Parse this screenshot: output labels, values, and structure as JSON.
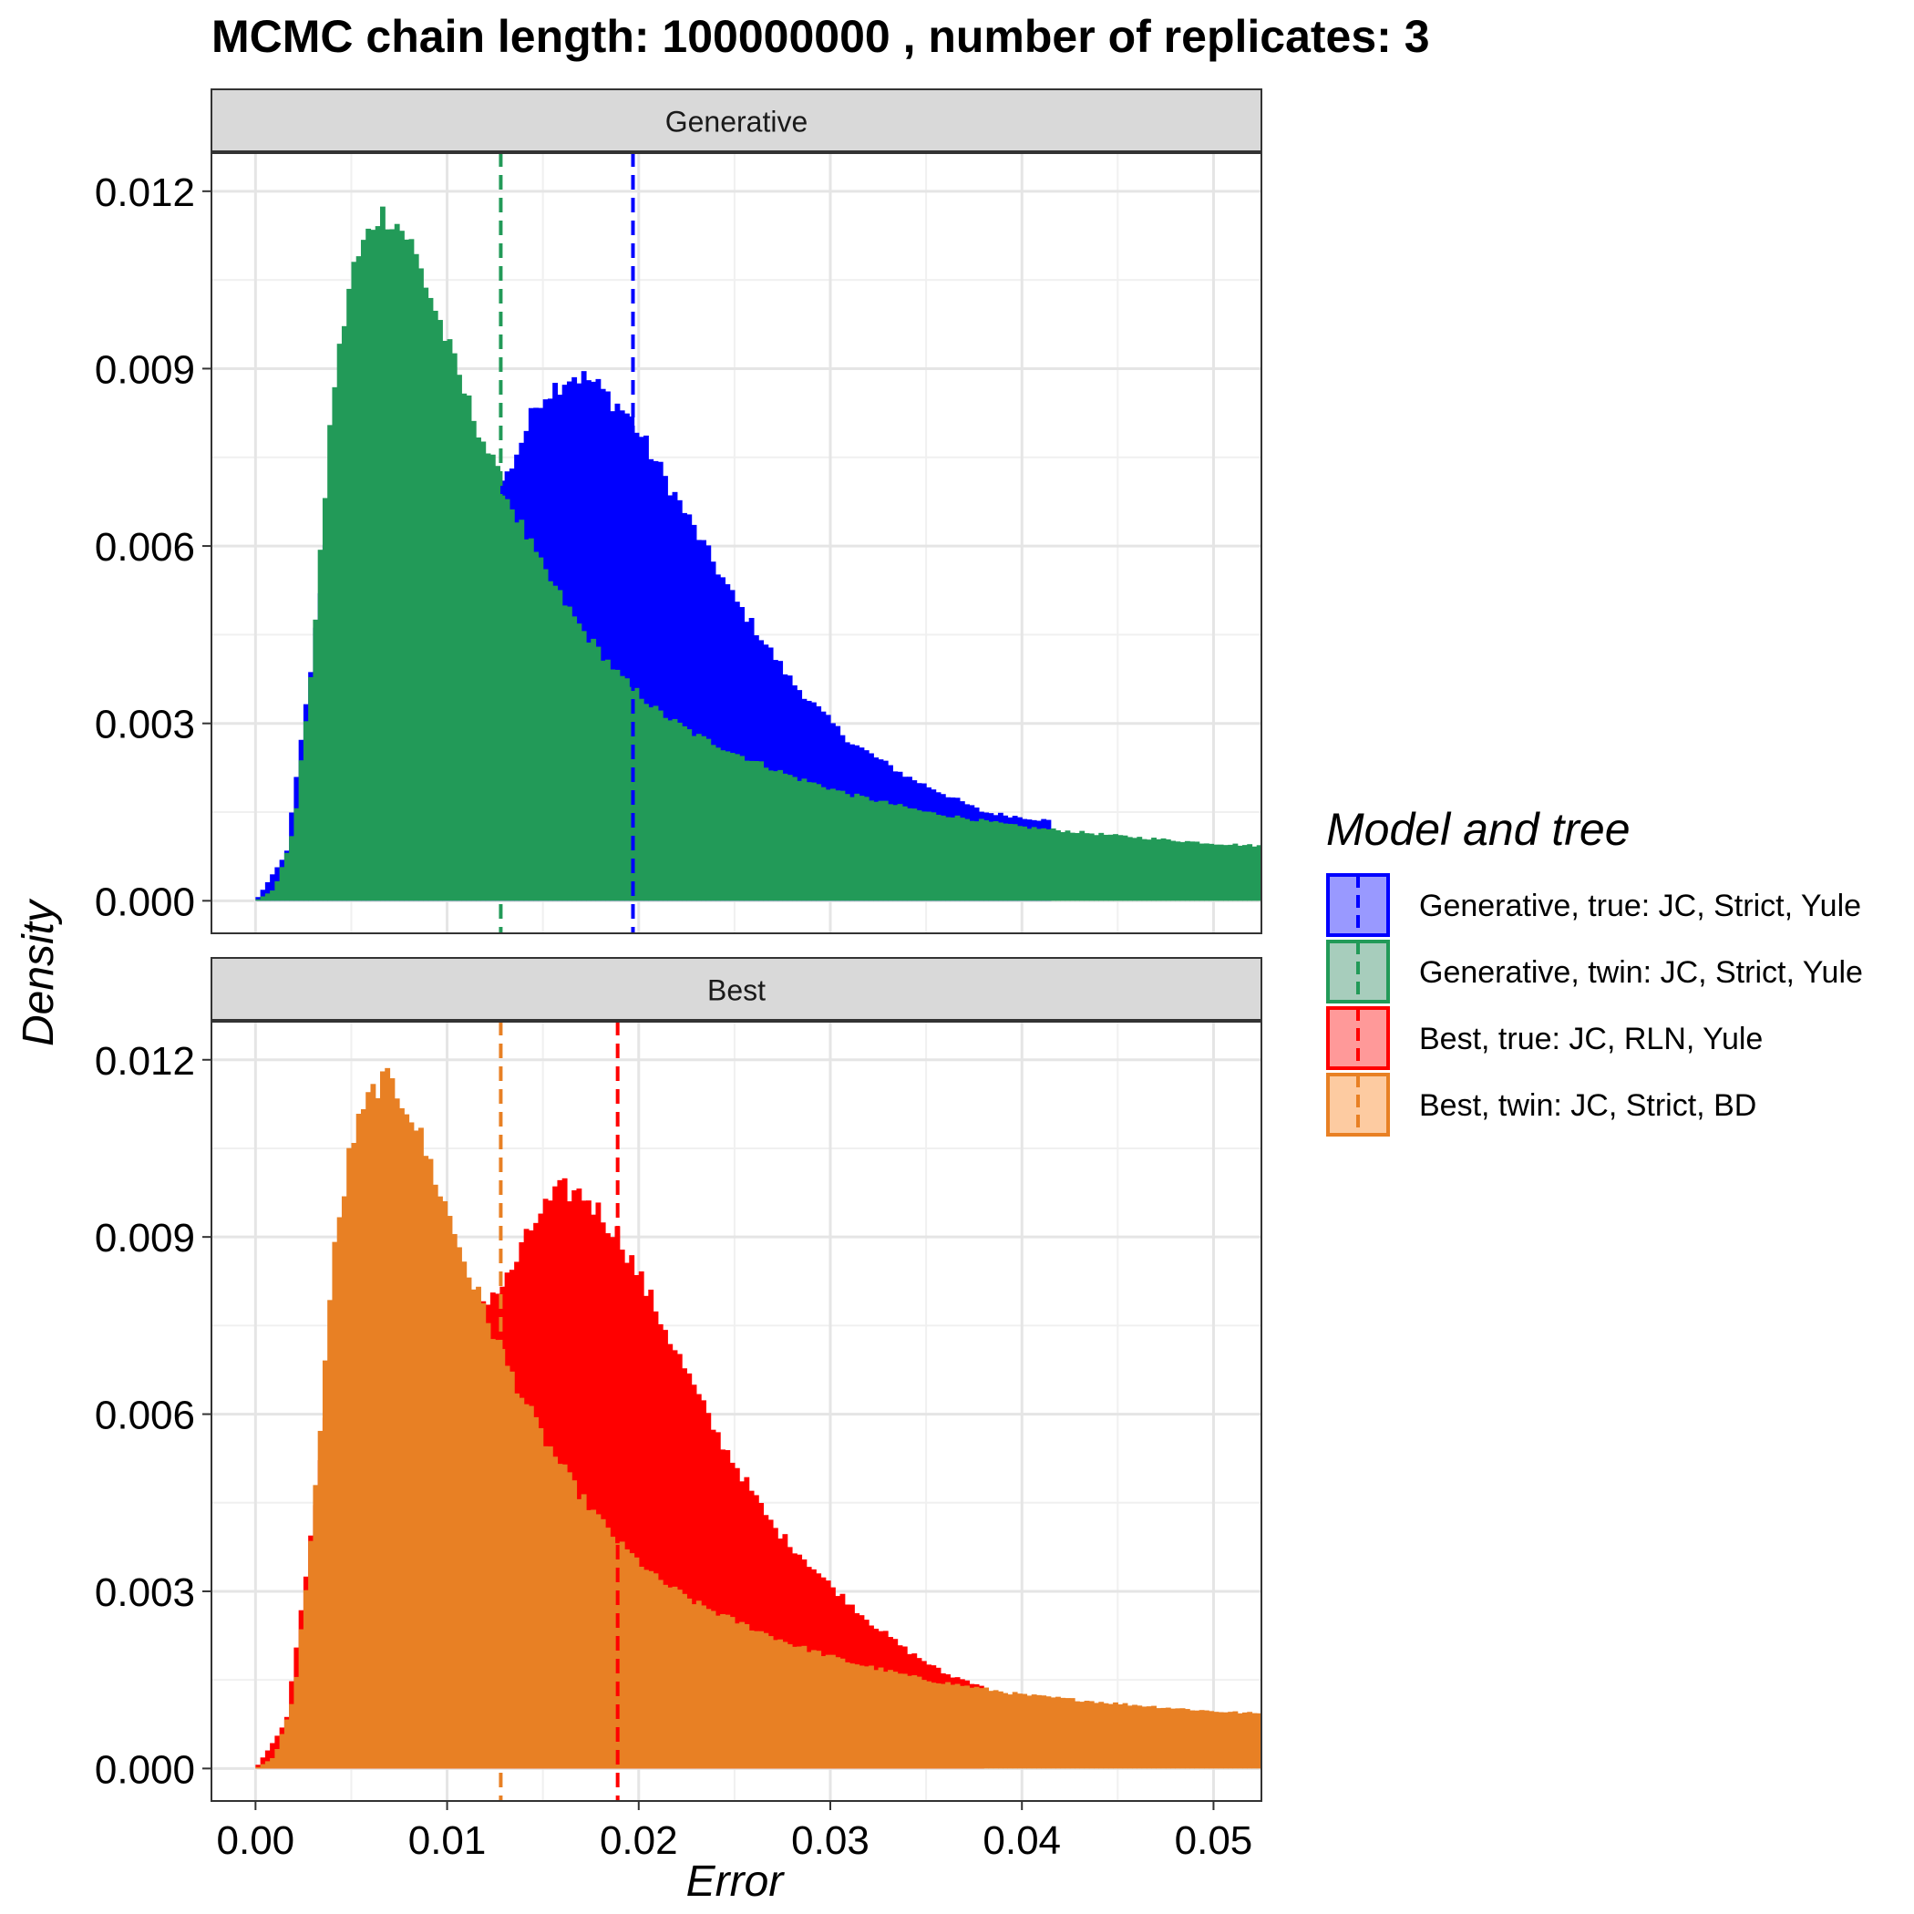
{
  "chart_data": {
    "type": "histogram",
    "title": "MCMC chain length: 100000000 , number of replicates:  3",
    "xlabel": "Error",
    "ylabel": "Density",
    "xlim": [
      -0.0023,
      0.0525
    ],
    "ylim": [
      -0.00055,
      0.01266
    ],
    "x_ticks": [
      0.0,
      0.01,
      0.02,
      0.03,
      0.04,
      0.05
    ],
    "x_tick_labels": [
      "0.00",
      "0.01",
      "0.02",
      "0.03",
      "0.04",
      "0.05"
    ],
    "y_ticks": [
      0.0,
      0.003,
      0.006,
      0.009,
      0.012
    ],
    "y_tick_labels": [
      "0.000",
      "0.003",
      "0.006",
      "0.009",
      "0.012"
    ],
    "grid": true,
    "legend": {
      "title": "Model and tree",
      "placement": "right",
      "entries": [
        {
          "label": "Generative, true: JC, Strict, Yule",
          "color": "#0000ff"
        },
        {
          "label": "Generative, twin: JC, Strict, Yule",
          "color": "#229a58"
        },
        {
          "label": "Best, true: JC, RLN, Yule",
          "color": "#ff0000"
        },
        {
          "label": "Best, twin: JC, Strict, BD",
          "color": "#e88024"
        }
      ]
    },
    "bin_width": 0.00025,
    "panels": [
      {
        "strip": "Generative",
        "series": [
          {
            "name": "Generative, true: JC, Strict, Yule",
            "color": "#0000ff",
            "mean": 0.0197,
            "profile_x": [
              0.0,
              0.0016,
              0.003,
              0.0045,
              0.006,
              0.0085,
              0.011,
              0.013,
              0.0148,
              0.0165,
              0.0175,
              0.0195,
              0.022,
              0.025,
              0.028,
              0.031,
              0.034,
              0.036,
              0.038,
              0.0415
            ],
            "profile_y": [
              0.0,
              0.0008,
              0.0042,
              0.0085,
              0.0106,
              0.0098,
              0.0077,
              0.0071,
              0.0085,
              0.0089,
              0.0088,
              0.0082,
              0.0068,
              0.0051,
              0.0037,
              0.0027,
              0.0021,
              0.0018,
              0.0015,
              0.00135
            ]
          },
          {
            "name": "Generative, twin: JC, Strict, Yule",
            "color": "#229a58",
            "mean": 0.0128,
            "profile_x": [
              0.0,
              0.001,
              0.002,
              0.003,
              0.004,
              0.005,
              0.0063,
              0.007,
              0.008,
              0.0095,
              0.011,
              0.013,
              0.015,
              0.017,
              0.019,
              0.021,
              0.023,
              0.025,
              0.028,
              0.031,
              0.035,
              0.04,
              0.045,
              0.05,
              0.0525
            ],
            "profile_y": [
              0.0,
              0.0002,
              0.0012,
              0.0042,
              0.0085,
              0.0106,
              0.0116,
              0.0116,
              0.0112,
              0.0099,
              0.0085,
              0.0069,
              0.0056,
              0.0046,
              0.0038,
              0.0032,
              0.0028,
              0.0025,
              0.0021,
              0.0018,
              0.0015,
              0.00125,
              0.0011,
              0.00097,
              0.00093
            ]
          }
        ]
      },
      {
        "strip": "Best",
        "series": [
          {
            "name": "Best, true: JC, RLN, Yule",
            "color": "#ff0000",
            "mean": 0.0189,
            "profile_x": [
              0.0,
              0.0016,
              0.003,
              0.0045,
              0.006,
              0.0085,
              0.011,
              0.013,
              0.0148,
              0.016,
              0.0172,
              0.019,
              0.021,
              0.024,
              0.027,
              0.03,
              0.032,
              0.034,
              0.036,
              0.038
            ],
            "profile_y": [
              0.0,
              0.0008,
              0.0042,
              0.0085,
              0.0106,
              0.0098,
              0.0077,
              0.0082,
              0.0094,
              0.0098,
              0.0097,
              0.009,
              0.0077,
              0.0057,
              0.0041,
              0.0031,
              0.0025,
              0.002,
              0.0016,
              0.0014
            ]
          },
          {
            "name": "Best, twin: JC, Strict, BD",
            "color": "#e88024",
            "mean": 0.0128,
            "profile_x": [
              0.0,
              0.001,
              0.002,
              0.003,
              0.004,
              0.005,
              0.0063,
              0.007,
              0.008,
              0.0095,
              0.011,
              0.013,
              0.015,
              0.017,
              0.019,
              0.021,
              0.023,
              0.025,
              0.028,
              0.031,
              0.035,
              0.04,
              0.045,
              0.05,
              0.0525
            ],
            "profile_y": [
              0.0,
              0.0002,
              0.0012,
              0.0042,
              0.0085,
              0.0106,
              0.0116,
              0.0116,
              0.0112,
              0.0099,
              0.0085,
              0.0069,
              0.0056,
              0.0046,
              0.0038,
              0.0032,
              0.0028,
              0.0025,
              0.0021,
              0.0018,
              0.0015,
              0.00125,
              0.0011,
              0.00097,
              0.00093
            ]
          }
        ]
      }
    ]
  }
}
